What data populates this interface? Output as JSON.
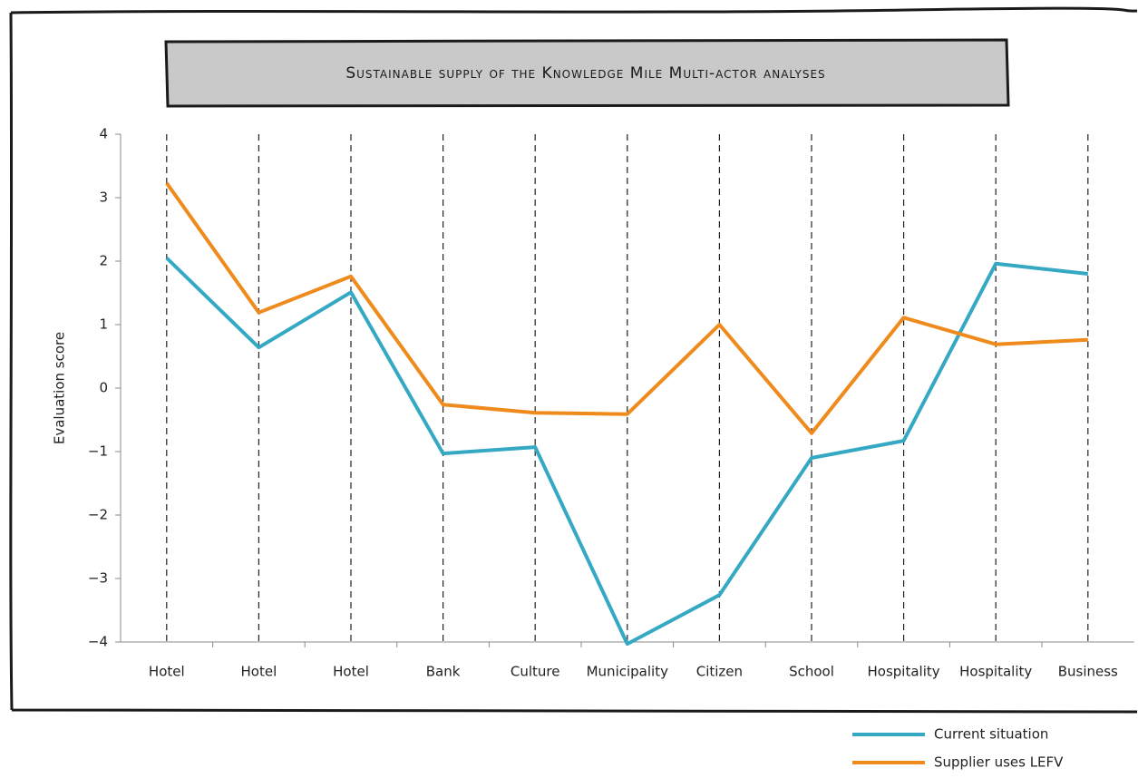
{
  "chart_data": {
    "type": "line",
    "title": "Sustainable supply of the Knowledge Mile Multi-actor analyses",
    "y_label": "Evaluation score",
    "categories": [
      "Hotel",
      "Hotel",
      "Hotel",
      "Bank",
      "Culture",
      "Municipality",
      "Citizen",
      "School",
      "Hospitality",
      "Hospitality",
      "Business"
    ],
    "series": [
      {
        "name": "Current situation",
        "color": "#35a8c4",
        "values": [
          2.05,
          0.64,
          1.51,
          -1.03,
          -0.93,
          -4.03,
          -3.26,
          -1.1,
          -0.83,
          1.96,
          1.8
        ]
      },
      {
        "name": "Supplier uses LEFV",
        "color": "#ef8a1d",
        "values": [
          3.23,
          1.19,
          1.76,
          -0.26,
          -0.39,
          -0.41,
          1.0,
          -0.71,
          1.11,
          0.69,
          0.76
        ]
      }
    ],
    "ylim": [
      -4,
      4
    ],
    "yticks": [
      {
        "value": -4,
        "label": "−4"
      },
      {
        "value": -3,
        "label": "−3"
      },
      {
        "value": -2,
        "label": "−2"
      },
      {
        "value": -1,
        "label": "−1"
      },
      0,
      1,
      2,
      3,
      4
    ],
    "grid": true,
    "legend": "bottom-right"
  }
}
